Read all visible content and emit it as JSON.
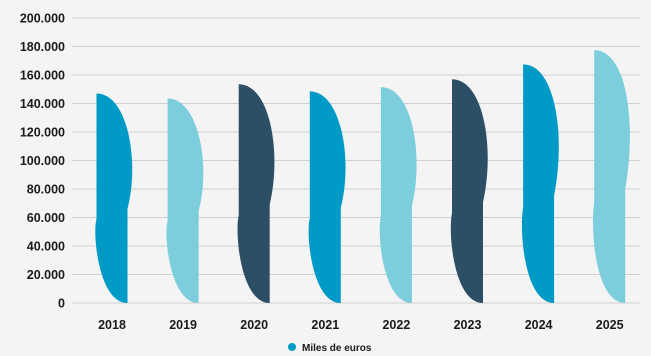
{
  "chart_data": {
    "type": "bar",
    "categories": [
      "2018",
      "2019",
      "2020",
      "2021",
      "2022",
      "2023",
      "2024",
      "2025"
    ],
    "series": [
      {
        "name": "Miles de euros",
        "values": [
          147000,
          143500,
          153500,
          148500,
          151500,
          157000,
          167500,
          177500
        ]
      }
    ],
    "bar_colors": [
      "#009ac7",
      "#7ccedd",
      "#2c4f66",
      "#009ac7",
      "#7ccedd",
      "#2c4f66",
      "#009ac7",
      "#7ccedd"
    ],
    "legend_color": "#009ac7",
    "y_tick_labels": [
      "0",
      "20.000",
      "40.000",
      "60.000",
      "80.000",
      "100.000",
      "120.000",
      "140.000",
      "160.000",
      "180.000",
      "200.000"
    ],
    "ylim": [
      0,
      200000
    ],
    "y_step": 20000,
    "grid": true,
    "legend_position": "bottom",
    "title": "",
    "xlabel": "",
    "ylabel": ""
  }
}
